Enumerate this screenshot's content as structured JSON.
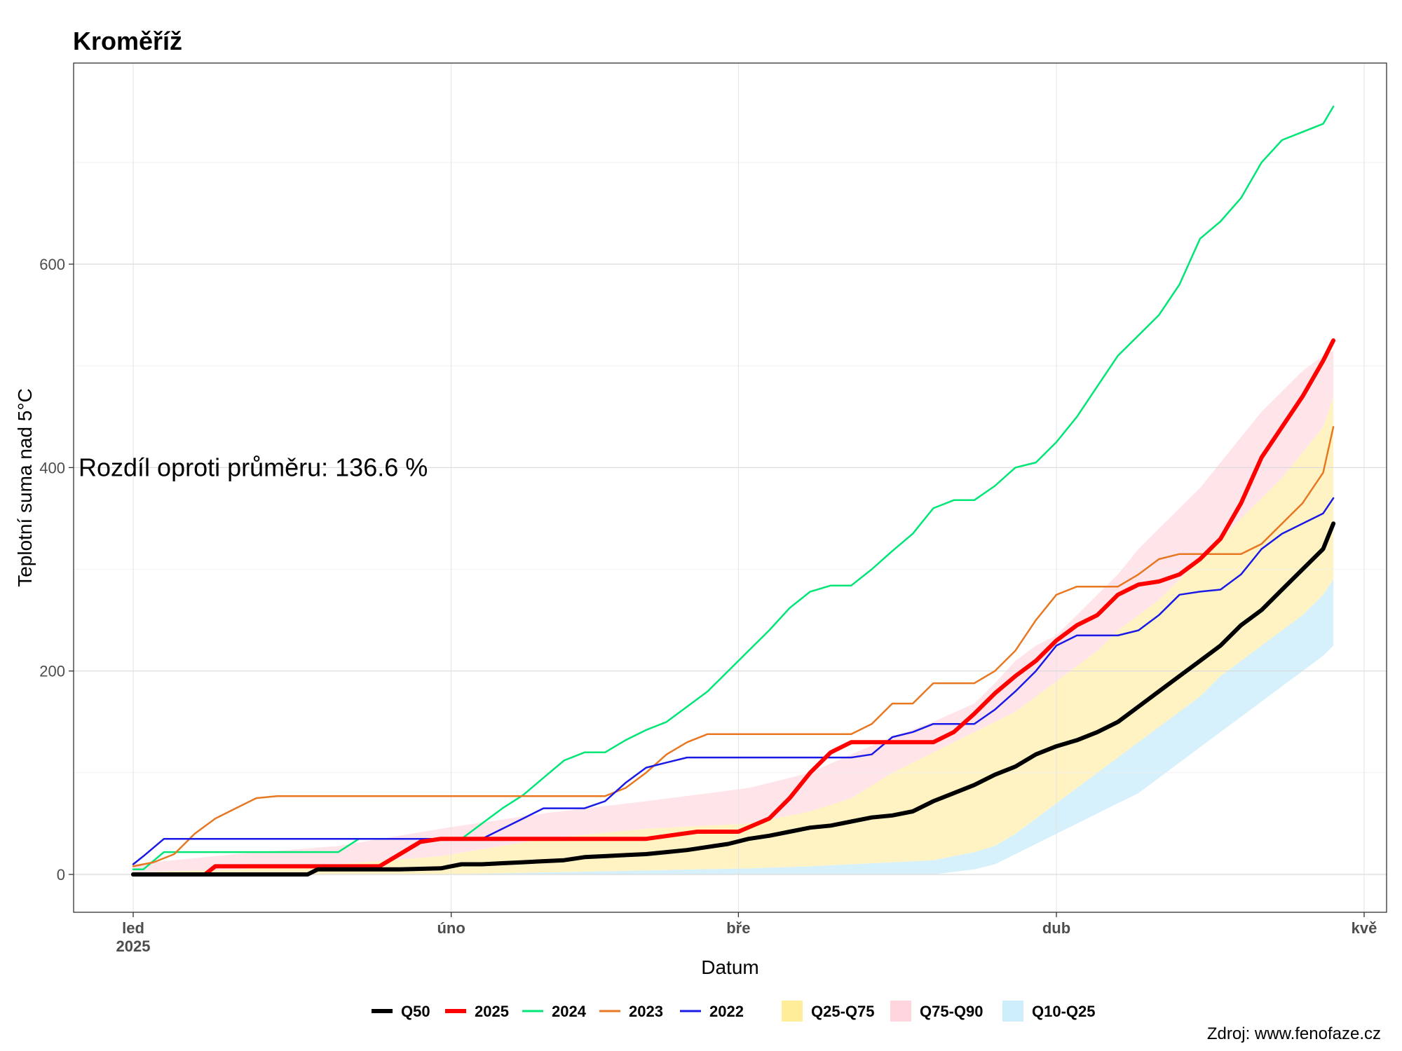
{
  "title": "Kroměříž",
  "source": "Zdroj: www.fenofaze.cz",
  "chart_data": {
    "type": "line",
    "title": "Kroměříž",
    "xlabel": "Datum",
    "ylabel": "Teplotní suma nad 5°C",
    "annotation": "Rozdíl oproti průměru: 136.6 %",
    "x_axis_type": "day-of-year",
    "xlim": [
      0,
      120
    ],
    "ylim": [
      -38,
      820
    ],
    "x_ticks": [
      {
        "value": 0,
        "label": "led",
        "label2": "2025"
      },
      {
        "value": 31,
        "label": "úno",
        "label2": ""
      },
      {
        "value": 59,
        "label": "bře",
        "label2": ""
      },
      {
        "value": 90,
        "label": "dub",
        "label2": ""
      },
      {
        "value": 120,
        "label": "kvě",
        "label2": ""
      }
    ],
    "y_ticks": [
      0,
      200,
      400,
      600
    ],
    "grid": true,
    "legend_position": "bottom",
    "series": [
      {
        "name": "2024",
        "color": "#00e676",
        "width": 2.5,
        "x": [
          0,
          1,
          3,
          5,
          10,
          20,
          22,
          24,
          28,
          30,
          32,
          34,
          36,
          38,
          40,
          42,
          44,
          46,
          48,
          50,
          52,
          54,
          56,
          58,
          60,
          62,
          64,
          66,
          68,
          70,
          72,
          74,
          76,
          78,
          80,
          82,
          84,
          86,
          88,
          90,
          92,
          94,
          96,
          98,
          100,
          102,
          104,
          106,
          108,
          110,
          112,
          114,
          116,
          117
        ],
        "y": [
          5,
          5,
          22,
          22,
          22,
          22,
          35,
          35,
          35,
          35,
          35,
          50,
          65,
          78,
          95,
          112,
          120,
          120,
          132,
          142,
          150,
          165,
          180,
          200,
          220,
          240,
          262,
          278,
          284,
          284,
          300,
          318,
          335,
          360,
          368,
          368,
          382,
          400,
          405,
          425,
          450,
          480,
          510,
          530,
          550,
          580,
          625,
          642,
          665,
          700,
          722,
          730,
          738,
          755
        ]
      },
      {
        "name": "2023",
        "color": "#e87722",
        "width": 2.5,
        "x": [
          0,
          2,
          4,
          6,
          8,
          10,
          12,
          14,
          30,
          40,
          46,
          48,
          50,
          52,
          54,
          56,
          58,
          60,
          62,
          64,
          66,
          68,
          70,
          72,
          74,
          76,
          78,
          80,
          82,
          84,
          86,
          88,
          90,
          92,
          94,
          96,
          98,
          100,
          102,
          104,
          106,
          108,
          110,
          112,
          114,
          116,
          117
        ],
        "y": [
          8,
          12,
          20,
          40,
          55,
          65,
          75,
          77,
          77,
          77,
          77,
          85,
          100,
          118,
          130,
          138,
          138,
          138,
          138,
          138,
          138,
          138,
          138,
          148,
          168,
          168,
          188,
          188,
          188,
          200,
          220,
          250,
          275,
          283,
          283,
          283,
          295,
          310,
          315,
          315,
          315,
          315,
          325,
          345,
          365,
          395,
          440
        ]
      },
      {
        "name": "2022",
        "color": "#1a1ae6",
        "width": 2.5,
        "x": [
          0,
          1,
          3,
          5,
          30,
          34,
          36,
          38,
          40,
          42,
          44,
          46,
          48,
          50,
          52,
          54,
          56,
          58,
          70,
          72,
          74,
          76,
          78,
          80,
          82,
          84,
          86,
          88,
          90,
          92,
          94,
          96,
          98,
          100,
          102,
          104,
          106,
          108,
          110,
          112,
          114,
          116,
          117
        ],
        "y": [
          10,
          18,
          35,
          35,
          35,
          35,
          45,
          55,
          65,
          65,
          65,
          72,
          90,
          105,
          110,
          115,
          115,
          115,
          115,
          118,
          135,
          140,
          148,
          148,
          148,
          162,
          180,
          200,
          225,
          235,
          235,
          235,
          240,
          255,
          275,
          278,
          280,
          295,
          320,
          335,
          345,
          355,
          370
        ]
      },
      {
        "name": "2025",
        "color": "#ff0000",
        "width": 6,
        "x": [
          0,
          7,
          8,
          24,
          26,
          28,
          30,
          40,
          50,
          55,
          59,
          62,
          64,
          66,
          68,
          70,
          72,
          74,
          76,
          78,
          80,
          82,
          84,
          86,
          88,
          90,
          92,
          94,
          96,
          98,
          100,
          102,
          104,
          106,
          108,
          110,
          112,
          114,
          116,
          117
        ],
        "y": [
          0,
          0,
          8,
          8,
          20,
          32,
          35,
          35,
          35,
          42,
          42,
          55,
          75,
          100,
          120,
          130,
          130,
          130,
          130,
          130,
          140,
          158,
          178,
          195,
          210,
          230,
          245,
          255,
          275,
          285,
          288,
          295,
          310,
          330,
          365,
          410,
          440,
          470,
          505,
          525
        ]
      },
      {
        "name": "Q50",
        "color": "#000000",
        "width": 6,
        "x": [
          0,
          10,
          17,
          18,
          20,
          24,
          26,
          30,
          32,
          34,
          36,
          38,
          40,
          42,
          44,
          46,
          48,
          50,
          52,
          54,
          56,
          58,
          60,
          62,
          64,
          66,
          68,
          70,
          72,
          74,
          76,
          78,
          80,
          82,
          84,
          86,
          88,
          90,
          92,
          94,
          96,
          98,
          100,
          102,
          104,
          106,
          108,
          110,
          112,
          114,
          116,
          117
        ],
        "y": [
          0,
          0,
          0,
          5,
          5,
          5,
          5,
          6,
          10,
          10,
          11,
          12,
          13,
          14,
          17,
          18,
          19,
          20,
          22,
          24,
          27,
          30,
          35,
          38,
          42,
          46,
          48,
          52,
          56,
          58,
          62,
          72,
          80,
          88,
          98,
          106,
          118,
          126,
          132,
          140,
          150,
          165,
          180,
          195,
          210,
          225,
          245,
          260,
          280,
          300,
          320,
          345
        ]
      }
    ],
    "bands": [
      {
        "name": "Q10-Q25",
        "color": "#d6f1fb",
        "x": [
          0,
          10,
          20,
          30,
          40,
          50,
          60,
          66,
          70,
          74,
          78,
          82,
          84,
          86,
          88,
          90,
          92,
          94,
          96,
          98,
          100,
          102,
          104,
          106,
          108,
          110,
          112,
          114,
          116,
          117
        ],
        "lower": [
          0,
          0,
          0,
          0,
          0,
          0,
          0,
          0,
          0,
          0,
          0,
          5,
          10,
          20,
          30,
          40,
          50,
          60,
          70,
          80,
          95,
          110,
          125,
          140,
          155,
          170,
          185,
          200,
          215,
          225
        ],
        "upper": [
          0,
          0,
          0,
          0,
          2,
          4,
          6,
          8,
          10,
          12,
          14,
          22,
          28,
          40,
          55,
          70,
          85,
          100,
          115,
          130,
          145,
          160,
          175,
          195,
          210,
          225,
          240,
          255,
          275,
          290
        ]
      },
      {
        "name": "Q25-Q75",
        "color": "#fff3c4",
        "x": [
          0,
          10,
          20,
          30,
          40,
          50,
          60,
          66,
          70,
          74,
          78,
          82,
          84,
          86,
          88,
          90,
          92,
          94,
          96,
          98,
          100,
          102,
          104,
          106,
          108,
          110,
          112,
          114,
          116,
          117
        ],
        "lower": [
          0,
          0,
          0,
          0,
          2,
          4,
          6,
          8,
          10,
          12,
          14,
          22,
          28,
          40,
          55,
          70,
          85,
          100,
          115,
          130,
          145,
          160,
          175,
          195,
          210,
          225,
          240,
          255,
          275,
          290
        ],
        "upper": [
          2,
          5,
          10,
          18,
          35,
          45,
          50,
          62,
          75,
          100,
          120,
          140,
          150,
          160,
          175,
          190,
          205,
          220,
          240,
          255,
          270,
          290,
          310,
          330,
          350,
          370,
          390,
          415,
          440,
          470
        ]
      },
      {
        "name": "Q75-Q90",
        "color": "#ffe4ea",
        "x": [
          0,
          10,
          20,
          30,
          40,
          50,
          60,
          66,
          70,
          74,
          78,
          82,
          84,
          86,
          88,
          90,
          92,
          94,
          96,
          98,
          100,
          102,
          104,
          106,
          108,
          110,
          112,
          114,
          116,
          117
        ],
        "lower": [
          2,
          5,
          10,
          18,
          35,
          45,
          50,
          62,
          75,
          100,
          120,
          140,
          150,
          160,
          175,
          190,
          205,
          220,
          240,
          255,
          270,
          290,
          310,
          330,
          350,
          370,
          390,
          415,
          440,
          470
        ],
        "upper": [
          10,
          20,
          28,
          45,
          60,
          72,
          85,
          100,
          118,
          135,
          150,
          168,
          188,
          210,
          225,
          235,
          255,
          275,
          295,
          320,
          340,
          360,
          380,
          405,
          430,
          455,
          475,
          495,
          510,
          515
        ]
      }
    ]
  },
  "legend": [
    {
      "label": "Q50",
      "kind": "line",
      "color": "#000000"
    },
    {
      "label": "2025",
      "kind": "line",
      "color": "#ff0000"
    },
    {
      "label": "2024",
      "kind": "line",
      "color": "#00e676"
    },
    {
      "label": "2023",
      "kind": "line",
      "color": "#e87722"
    },
    {
      "label": "2022",
      "kind": "line",
      "color": "#1a1ae6"
    },
    {
      "label": "Q25-Q75",
      "kind": "fill",
      "color": "#ffed99"
    },
    {
      "label": "Q75-Q90",
      "kind": "fill",
      "color": "#ffd6de"
    },
    {
      "label": "Q10-Q25",
      "kind": "fill",
      "color": "#cdeefa"
    }
  ]
}
